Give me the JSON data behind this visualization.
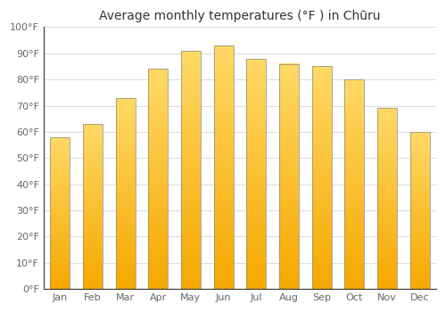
{
  "title": "Average monthly temperatures (°F ) in Chūru",
  "months": [
    "Jan",
    "Feb",
    "Mar",
    "Apr",
    "May",
    "Jun",
    "Jul",
    "Aug",
    "Sep",
    "Oct",
    "Nov",
    "Dec"
  ],
  "values": [
    58,
    63,
    73,
    84,
    91,
    93,
    88,
    86,
    85,
    80,
    69,
    60
  ],
  "bar_color_bottom": "#F5A800",
  "bar_color_top": "#FFD966",
  "bar_edge_color": "#888888",
  "background_color": "#FFFFFF",
  "plot_bg_color": "#FFFFFF",
  "grid_color": "#DDDDDD",
  "ylim": [
    0,
    100
  ],
  "yticks": [
    0,
    10,
    20,
    30,
    40,
    50,
    60,
    70,
    80,
    90,
    100
  ],
  "ytick_labels": [
    "0°F",
    "10°F",
    "20°F",
    "30°F",
    "40°F",
    "50°F",
    "60°F",
    "70°F",
    "80°F",
    "90°F",
    "100°F"
  ],
  "title_fontsize": 10,
  "tick_fontsize": 8,
  "title_color": "#333333",
  "tick_color": "#666666",
  "spine_color": "#333333"
}
